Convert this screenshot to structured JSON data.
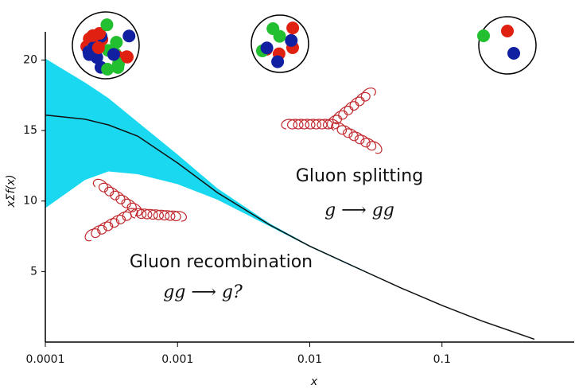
{
  "chart_data": {
    "type": "line",
    "x_label": "x",
    "y_label": "xΣf(x)",
    "x": [
      0.0001,
      0.0002,
      0.0003,
      0.0005,
      0.001,
      0.002,
      0.005,
      0.01,
      0.02,
      0.05,
      0.1,
      0.2,
      0.5
    ],
    "series": [
      {
        "color": "#111111",
        "values": [
          16.1,
          15.8,
          15.4,
          14.6,
          12.7,
          10.6,
          8.3,
          6.8,
          5.5,
          3.8,
          2.6,
          1.5,
          0.2
        ]
      }
    ],
    "band": {
      "color": "#19d8f0",
      "upper": [
        20.1,
        18.4,
        17.3,
        15.6,
        13.3,
        10.9,
        8.4,
        6.85,
        5.55,
        3.82,
        2.62,
        1.52,
        0.22
      ],
      "lower": [
        9.5,
        11.5,
        12.1,
        11.9,
        11.2,
        10.1,
        8.2,
        6.75,
        5.45,
        3.78,
        2.58,
        1.48,
        0.18
      ]
    },
    "xlim": [
      0.0001,
      1
    ],
    "xticks": [
      0.0001,
      0.001,
      0.01,
      0.1
    ],
    "log_x": true,
    "ylim": [
      0,
      22
    ],
    "yticks": [
      5,
      10,
      15,
      20
    ],
    "annotations": [
      "Gluon splitting",
      "g ⟶ gg",
      "Gluon recombination",
      "gg ⟶ g?"
    ]
  }
}
